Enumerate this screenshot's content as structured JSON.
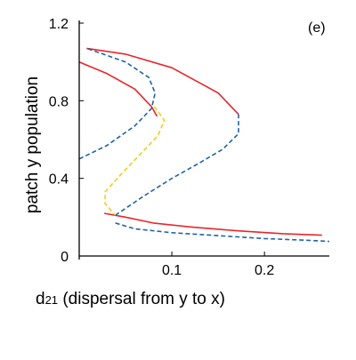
{
  "chart_data": {
    "type": "line",
    "panel_label": "(e)",
    "ylabel": "patch y population",
    "xlabel_main": "d",
    "xlabel_sub": "21",
    "xlabel_rest": " (dispersal from y to x)",
    "xlim": [
      0,
      0.27
    ],
    "ylim": [
      0,
      1.2
    ],
    "x_ticks": [
      {
        "value": 0.1,
        "label": "0.1"
      },
      {
        "value": 0.2,
        "label": "0.2"
      }
    ],
    "y_ticks": [
      {
        "value": 0,
        "label": "0"
      },
      {
        "value": 0.4,
        "label": "0.4"
      },
      {
        "value": 0.8,
        "label": "0.8"
      },
      {
        "value": 1.2,
        "label": "1.2"
      }
    ],
    "grid": false,
    "series": [
      {
        "style": "solid",
        "color": "#e8262c",
        "points": [
          [
            0.0,
            1.0
          ],
          [
            0.03,
            0.94
          ],
          [
            0.06,
            0.86
          ],
          [
            0.078,
            0.77
          ],
          [
            0.084,
            0.72
          ]
        ]
      },
      {
        "style": "solid",
        "color": "#e8262c",
        "points": [
          [
            0.008,
            1.07
          ],
          [
            0.05,
            1.04
          ],
          [
            0.1,
            0.97
          ],
          [
            0.15,
            0.84
          ],
          [
            0.172,
            0.73
          ]
        ]
      },
      {
        "style": "solid",
        "color": "#e8262c",
        "points": [
          [
            0.027,
            0.22
          ],
          [
            0.05,
            0.2
          ],
          [
            0.08,
            0.17
          ],
          [
            0.12,
            0.15
          ],
          [
            0.17,
            0.13
          ],
          [
            0.22,
            0.115
          ],
          [
            0.262,
            0.107
          ]
        ]
      },
      {
        "style": "dashed",
        "color": "#1f63a8",
        "points": [
          [
            0.0,
            0.5
          ],
          [
            0.03,
            0.57
          ],
          [
            0.06,
            0.67
          ],
          [
            0.078,
            0.76
          ],
          [
            0.082,
            0.84
          ],
          [
            0.075,
            0.92
          ],
          [
            0.05,
            1.0
          ],
          [
            0.02,
            1.05
          ],
          [
            0.008,
            1.07
          ]
        ]
      },
      {
        "style": "dashed",
        "color": "#1f63a8",
        "points": [
          [
            0.039,
            0.21
          ],
          [
            0.07,
            0.31
          ],
          [
            0.1,
            0.4
          ],
          [
            0.13,
            0.48
          ],
          [
            0.155,
            0.55
          ],
          [
            0.172,
            0.63
          ],
          [
            0.172,
            0.73
          ]
        ]
      },
      {
        "style": "dashed",
        "color": "#1f63a8",
        "points": [
          [
            0.039,
            0.17
          ],
          [
            0.06,
            0.14
          ],
          [
            0.1,
            0.12
          ],
          [
            0.15,
            0.105
          ],
          [
            0.2,
            0.09
          ],
          [
            0.25,
            0.08
          ],
          [
            0.27,
            0.075
          ]
        ]
      },
      {
        "style": "dashed",
        "color": "#f2cd1b",
        "points": [
          [
            0.081,
            0.77
          ],
          [
            0.092,
            0.7
          ],
          [
            0.085,
            0.62
          ],
          [
            0.065,
            0.52
          ],
          [
            0.045,
            0.42
          ],
          [
            0.028,
            0.33
          ],
          [
            0.028,
            0.27
          ],
          [
            0.039,
            0.21
          ]
        ]
      }
    ]
  }
}
